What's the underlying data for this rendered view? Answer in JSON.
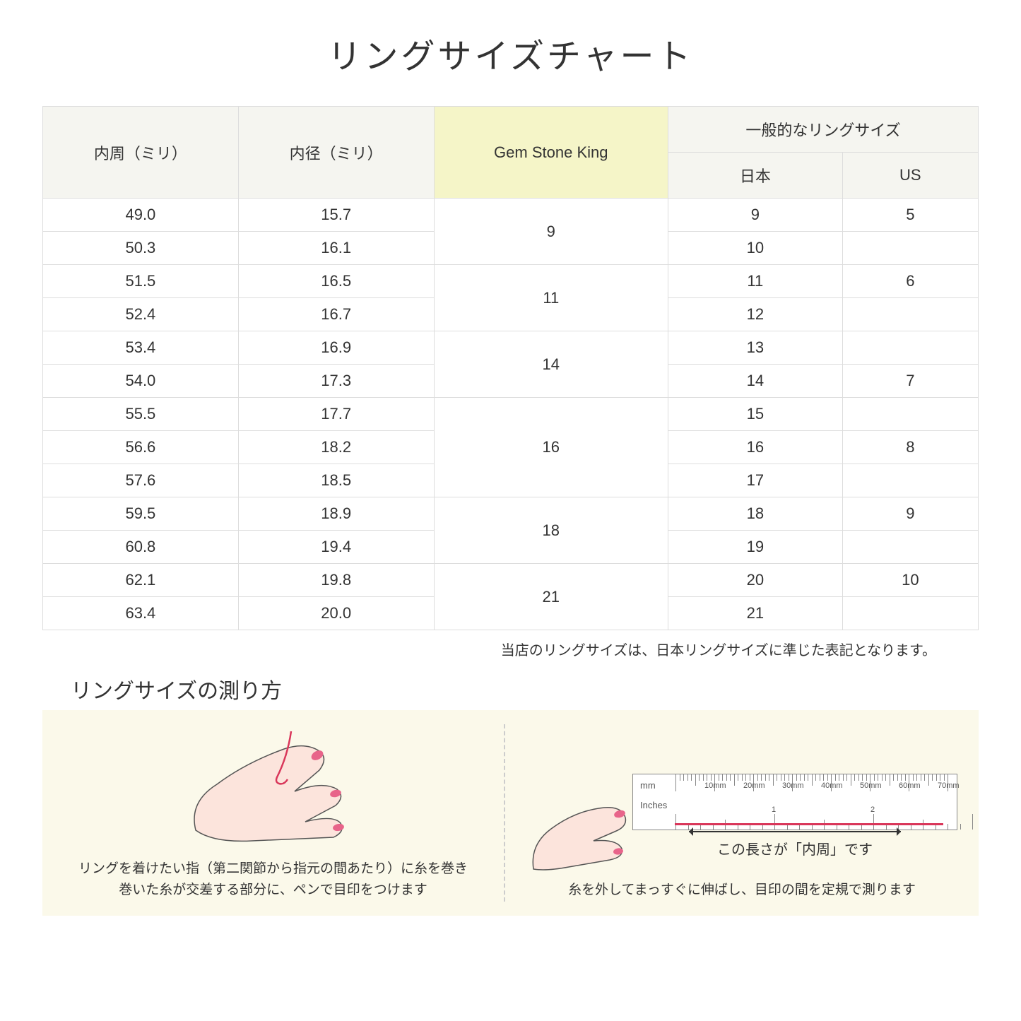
{
  "title": "リングサイズチャート",
  "headers": {
    "col1": "内周（ミリ）",
    "col2": "内径（ミリ）",
    "col3": "Gem Stone King",
    "col4_group": "一般的なリングサイズ",
    "col4a": "日本",
    "col4b": "US"
  },
  "rows": [
    {
      "c": "49.0",
      "d": "15.7",
      "g": "9",
      "gspan": 2,
      "jp": "9",
      "us": "5"
    },
    {
      "c": "50.3",
      "d": "16.1",
      "jp": "10",
      "us": ""
    },
    {
      "c": "51.5",
      "d": "16.5",
      "g": "11",
      "gspan": 2,
      "jp": "11",
      "us": "6"
    },
    {
      "c": "52.4",
      "d": "16.7",
      "jp": "12",
      "us": ""
    },
    {
      "c": "53.4",
      "d": "16.9",
      "g": "14",
      "gspan": 2,
      "jp": "13",
      "us": ""
    },
    {
      "c": "54.0",
      "d": "17.3",
      "jp": "14",
      "us": "7"
    },
    {
      "c": "55.5",
      "d": "17.7",
      "g": "16",
      "gspan": 3,
      "jp": "15",
      "us": ""
    },
    {
      "c": "56.6",
      "d": "18.2",
      "jp": "16",
      "us": "8"
    },
    {
      "c": "57.6",
      "d": "18.5",
      "jp": "17",
      "us": ""
    },
    {
      "c": "59.5",
      "d": "18.9",
      "g": "18",
      "gspan": 2,
      "jp": "18",
      "us": "9"
    },
    {
      "c": "60.8",
      "d": "19.4",
      "jp": "19",
      "us": ""
    },
    {
      "c": "62.1",
      "d": "19.8",
      "g": "21",
      "gspan": 2,
      "jp": "20",
      "us": "10"
    },
    {
      "c": "63.4",
      "d": "20.0",
      "jp": "21",
      "us": ""
    }
  ],
  "note": "当店のリングサイズは、日本リングサイズに準じた表記となります。",
  "howto_title": "リングサイズの測り方",
  "left_caption": "リングを着けたい指（第二関節から指元の間あたり）に糸を巻き\n巻いた糸が交差する部分に、ペンで目印をつけます",
  "right_caption": "糸を外してまっすぐに伸ばし、目印の間を定規で測ります",
  "arrow_label": "この長さが「内周」です",
  "ruler_mm": "mm",
  "ruler_inches": "Inches",
  "mm_marks": [
    "10mm",
    "20mm",
    "30mm",
    "40mm",
    "50mm",
    "60mm",
    "70mm"
  ],
  "inch_marks": [
    "1",
    "2"
  ],
  "colors": {
    "header_gray": "#f5f5f0",
    "header_yellow": "#f5f5c8",
    "howto_bg": "#fbf9ea",
    "skin": "#fce4dc",
    "nail": "#e8648a",
    "thread": "#d9365a",
    "border": "#dddddd"
  }
}
